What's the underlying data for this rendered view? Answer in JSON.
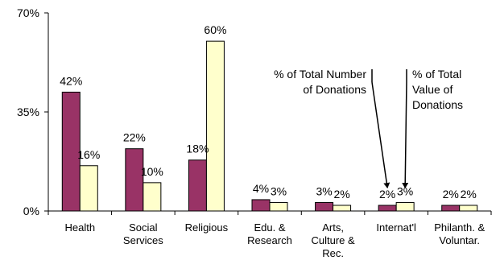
{
  "chart_data": {
    "type": "bar",
    "categories": [
      [
        "Health"
      ],
      [
        "Social",
        "Services"
      ],
      [
        "Religious"
      ],
      [
        "Edu. &",
        "Research"
      ],
      [
        "Arts,",
        "Culture &",
        "Rec."
      ],
      [
        "Internat'l"
      ],
      [
        "Philanth. &",
        "Voluntar."
      ]
    ],
    "series": [
      {
        "name": "% of Total Number of Donations",
        "color": "#993366",
        "values": [
          42,
          22,
          18,
          4,
          3,
          2,
          2
        ],
        "labels": [
          "42%",
          "22%",
          "18%",
          "4%",
          "3%",
          "2%",
          "2%"
        ]
      },
      {
        "name": "% of Total Value of Donations",
        "color": "#FFFFCC",
        "values": [
          16,
          10,
          60,
          3,
          2,
          3,
          2
        ],
        "labels": [
          "16%",
          "10%",
          "60%",
          "3%",
          "2%",
          "3%",
          "2%"
        ]
      }
    ],
    "ylim": [
      0,
      70
    ],
    "yticks": [
      {
        "value": 0,
        "label": "0%"
      },
      {
        "value": 35,
        "label": "35%"
      },
      {
        "value": 70,
        "label": "70%"
      }
    ],
    "annotations": [
      {
        "series": 0,
        "lines": [
          "% of Total Number",
          "of  Donations"
        ],
        "arrow_to_category": 5
      },
      {
        "series": 1,
        "lines": [
          "% of Total",
          "Value of",
          "Donations"
        ],
        "arrow_to_category": 5
      }
    ],
    "grid": false,
    "legend": "none"
  }
}
